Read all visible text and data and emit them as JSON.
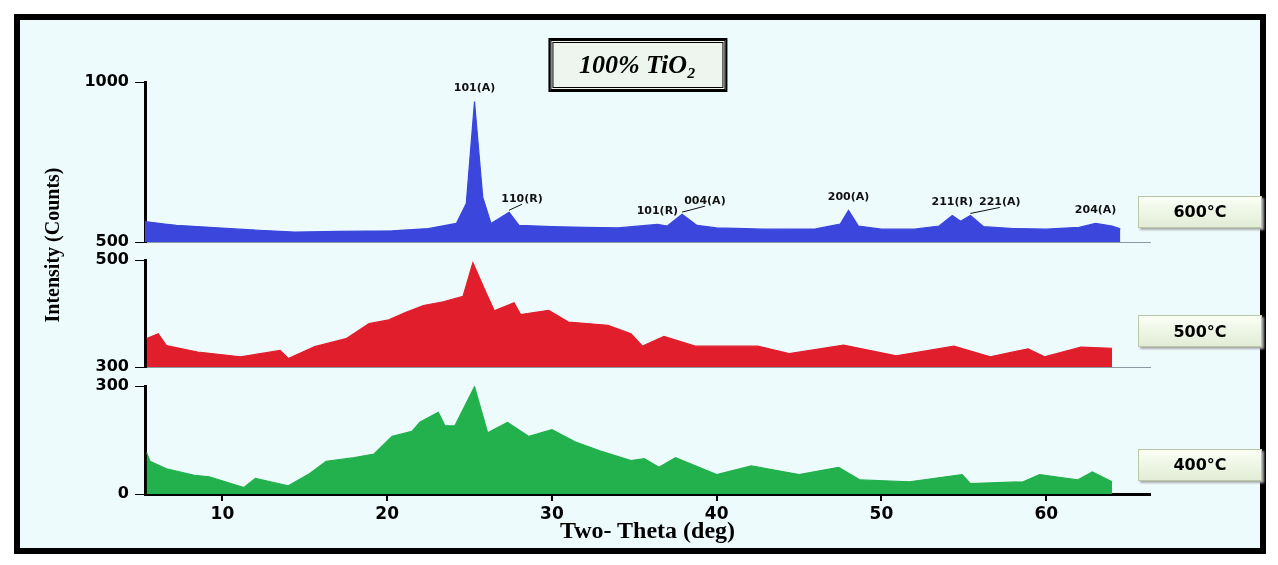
{
  "chart_data": [
    {
      "type": "area",
      "title": "100% TiO₂",
      "ylabel": "Intensity (Counts)",
      "xlim": [
        5.3,
        66.3
      ],
      "ylim": [
        500,
        1000
      ],
      "yticks": [
        500,
        1000
      ],
      "tick_labels": "y",
      "series": [
        {
          "name": "600°C",
          "color": "#3a46dc",
          "x": [
            5.3,
            6.5,
            7.2,
            9.2,
            11,
            14.4,
            17,
            20.3,
            22.5,
            24.2,
            24.8,
            25.3,
            25.8,
            26.3,
            27.4,
            28,
            30,
            32,
            34,
            36.4,
            37,
            37.9,
            38.8,
            40,
            43,
            46,
            47.5,
            48,
            48.6,
            50,
            52,
            53.5,
            54.3,
            54.8,
            55.4,
            56.2,
            58,
            60,
            62,
            63,
            64,
            64.5
          ],
          "values": [
            564,
            556,
            552,
            546,
            540,
            531,
            533,
            535,
            542,
            558,
            620,
            939,
            640,
            558,
            593,
            552,
            548,
            546,
            544,
            555,
            550,
            587,
            552,
            544,
            540,
            541,
            556,
            599,
            550,
            540,
            540,
            550,
            583,
            565,
            583,
            548,
            542,
            540,
            546,
            558,
            550,
            541
          ]
        }
      ],
      "annotations": [
        {
          "text": "101(A)",
          "x": 25.3,
          "y": 939
        },
        {
          "text": "110(R)",
          "x": 27.4,
          "y": 593
        },
        {
          "text": "101(R)",
          "x": 36.4,
          "y": 555
        },
        {
          "text": "004(A)",
          "x": 37.9,
          "y": 587
        },
        {
          "text": "200(A)",
          "x": 48,
          "y": 599
        },
        {
          "text": "211(R)",
          "x": 54.3,
          "y": 583
        },
        {
          "text": "221(A)",
          "x": 55.4,
          "y": 583
        },
        {
          "text": "204(A)",
          "x": 63,
          "y": 558
        }
      ]
    },
    {
      "type": "area",
      "xlim": [
        5.3,
        66.3
      ],
      "ylim": [
        300,
        500
      ],
      "yticks": [
        300,
        500
      ],
      "tick_labels": "y",
      "series": [
        {
          "name": "500°C",
          "color": "#e11e2b",
          "x": [
            5.4,
            6.1,
            6.6,
            8.5,
            11.1,
            13.5,
            14,
            15.6,
            17.5,
            18.9,
            20.1,
            21.1,
            22.2,
            23.4,
            24.6,
            25.2,
            26,
            26.5,
            27.7,
            28.1,
            29.8,
            31,
            33.4,
            34.8,
            35.5,
            36.8,
            38.7,
            42.5,
            44.4,
            47.7,
            50.9,
            54.4,
            56.6,
            58.9,
            59.9,
            62.1,
            64
          ],
          "values": [
            353,
            362,
            340,
            328,
            319,
            331,
            316,
            338,
            353,
            381,
            388,
            402,
            415,
            422,
            432,
            495,
            439,
            405,
            420,
            398,
            406,
            384,
            378,
            362,
            339,
            357,
            339,
            339,
            325,
            341,
            321,
            339,
            319,
            334,
            319,
            337,
            335
          ]
        }
      ]
    },
    {
      "type": "area",
      "xlabel": "Two- Theta (deg)",
      "xlim": [
        5.3,
        66.3
      ],
      "ylim": [
        0,
        300
      ],
      "yticks": [
        0,
        300
      ],
      "xticks": [
        10,
        20,
        30,
        40,
        50,
        60
      ],
      "series": [
        {
          "name": "400°C",
          "color": "#22b14c",
          "x": [
            5.4,
            5.6,
            6.6,
            8.3,
            9.2,
            11.3,
            12,
            14,
            15.3,
            16.3,
            18,
            19.2,
            20.3,
            21.5,
            22,
            23.1,
            23.5,
            24.1,
            25.3,
            26.1,
            27.3,
            28.6,
            30,
            31.4,
            32.9,
            34.8,
            35.6,
            36.5,
            37.5,
            40,
            42.1,
            45,
            47.4,
            48.7,
            51.7,
            54.9,
            55.4,
            58.6,
            59.6,
            61.9,
            62.8,
            64
          ],
          "values": [
            115,
            91,
            70,
            52,
            48,
            18,
            43,
            23,
            57,
            91,
            101,
            111,
            160,
            174,
            200,
            227,
            190,
            189,
            298,
            170,
            199,
            160,
            179,
            145,
            120,
            93,
            98,
            74,
            101,
            54,
            78,
            54,
            74,
            39,
            34,
            54,
            29,
            34,
            54,
            39,
            61,
            34
          ]
        }
      ]
    }
  ]
}
